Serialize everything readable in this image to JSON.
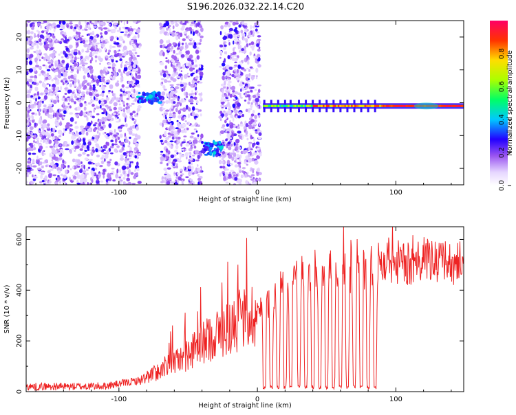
{
  "title": "S196.2026.032.22.14.C20",
  "chart_data": [
    {
      "type": "heatmap",
      "name": "spectrogram",
      "xlabel": "Height of straight line (km)",
      "ylabel": "Frequency (Hz)",
      "xlim": [
        -167,
        149
      ],
      "ylim": [
        -25,
        25
      ],
      "xticks": [
        -100,
        0,
        100
      ],
      "yticks": [
        -20,
        -10,
        0,
        10,
        20
      ],
      "colorbar": {
        "label": "Normalized spectral amplitude",
        "range": [
          0,
          1
        ],
        "ticks": [
          0.0,
          0.2,
          0.4,
          0.6,
          0.8
        ]
      },
      "features": [
        {
          "desc": "broadband noise",
          "x": [
            -167,
            -85
          ],
          "freq": [
            -25,
            25
          ],
          "amp": 0.25
        },
        {
          "desc": "broadband noise",
          "x": [
            -70,
            -40
          ],
          "freq": [
            -25,
            25
          ],
          "amp": 0.25
        },
        {
          "desc": "broadband noise",
          "x": [
            -27,
            2
          ],
          "freq": [
            -25,
            25
          ],
          "amp": 0.25
        },
        {
          "desc": "tone segment",
          "x": [
            -86,
            -70
          ],
          "freq": [
            0,
            3
          ],
          "amp": 0.45
        },
        {
          "desc": "tone segment",
          "x": [
            -40,
            -26
          ],
          "freq": [
            -16,
            -12
          ],
          "amp": 0.45
        },
        {
          "desc": "carrier line",
          "x": [
            4,
            149
          ],
          "freq": -1,
          "amp": 0.9
        }
      ]
    },
    {
      "type": "line",
      "name": "snr",
      "xlabel": "Height of straight line (km)",
      "ylabel": "SNR (10 * v/v)",
      "xlim": [
        -167,
        149
      ],
      "ylim": [
        0,
        650
      ],
      "xticks": [
        -100,
        0,
        100
      ],
      "yticks": [
        0,
        200,
        400,
        600
      ],
      "color": "#ee2222",
      "series": [
        {
          "name": "SNR envelope",
          "x": [
            -167,
            -140,
            -110,
            -95,
            -85,
            -75,
            -65,
            -55,
            -45,
            -35,
            -25,
            -15,
            -5,
            0,
            5,
            10,
            15,
            20,
            30,
            40,
            50,
            60,
            70,
            80,
            85,
            90,
            100,
            110,
            120,
            130,
            140,
            149
          ],
          "values": [
            20,
            20,
            22,
            35,
            45,
            70,
            100,
            130,
            165,
            210,
            240,
            270,
            300,
            310,
            330,
            360,
            400,
            440,
            480,
            470,
            480,
            470,
            460,
            480,
            500,
            500,
            510,
            500,
            520,
            500,
            510,
            505
          ]
        }
      ],
      "dropouts_x": [
        5,
        10,
        15,
        20,
        24,
        30,
        35,
        40,
        45,
        50,
        55,
        60,
        65,
        70,
        75,
        80,
        85
      ]
    }
  ]
}
